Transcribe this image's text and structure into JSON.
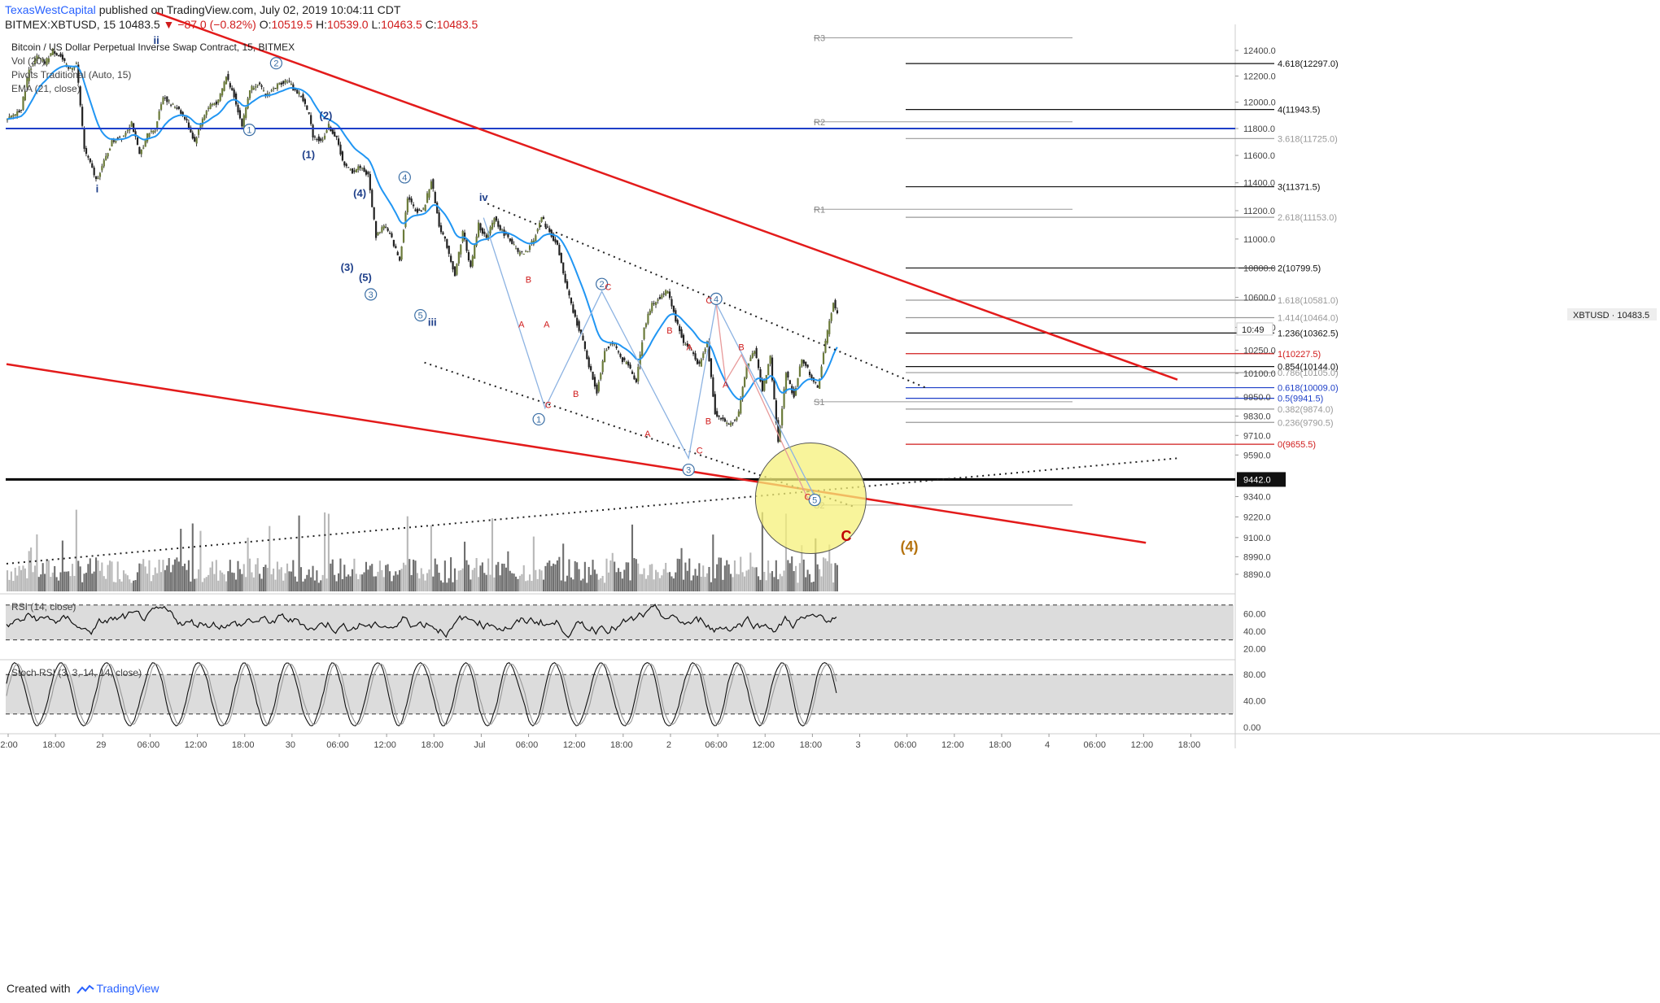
{
  "header": {
    "author": "TexasWestCapital",
    "published_text": "published on TradingView.com, July 02, 2019 10:04:11 CDT",
    "symbol_line": "BITMEX:XBTUSD, 15",
    "last": "10483.5",
    "change": "▼ −87.0 (−0.82%)",
    "o_label": "O:",
    "o_val": "10519.5",
    "h_label": "H:",
    "h_val": "10539.0",
    "l_label": "L:",
    "l_val": "10463.5",
    "c_label": "C:",
    "c_val": "10483.5"
  },
  "legend": {
    "title": "Bitcoin / US Dollar Perpetual Inverse Swap Contract, 15, BITMEX",
    "items": [
      "Vol (20)",
      "Pivots Traditional (Auto, 15)",
      "EMA (21, close)"
    ]
  },
  "footer": {
    "created_with": "Created with",
    "brand": "TradingView"
  },
  "colors": {
    "up": "#6b7b3a",
    "down": "#222222",
    "ema": "#2196f3",
    "red_line": "#e31b1b",
    "blue_line": "#1e3fc8",
    "circle_fill": "#f6f07a",
    "rsi_band": "#dcdcdc"
  },
  "chart_data": [
    {
      "type": "line",
      "title": "Bitcoin / US Dollar Perpetual Inverse Swap Contract, 15, BITMEX",
      "y_axis": {
        "ticks": [
          12400.0,
          12200.0,
          12000.0,
          11800.0,
          11600.0,
          11400.0,
          11200.0,
          11000.0,
          10800.0,
          10600.0,
          10400.0,
          10250.0,
          10100.0,
          9950.0,
          9830.0,
          9710.0,
          9590.0,
          9442.0,
          9340.0,
          9220.0,
          9100.0,
          8990.0,
          8890.0
        ],
        "tick_labels": [
          "12400.0",
          "12200.0",
          "12000.0",
          "11800.0",
          "11600.0",
          "11400.0",
          "11200.0",
          "11000.0",
          "10800.0",
          "10600.0",
          "10400.0",
          "10250.0",
          "10100.0",
          "9950.0",
          "9830.0",
          "9710.0",
          "9590.0",
          "9442.0",
          "9340.0",
          "9220.0",
          "9100.0",
          "8990.0",
          "8890.0"
        ],
        "scale": "log"
      },
      "x_axis": {
        "tick_labels": [
          "12:00",
          "18:00",
          "29",
          "06:00",
          "12:00",
          "18:00",
          "30",
          "06:00",
          "12:00",
          "18:00",
          "Jul",
          "06:00",
          "12:00",
          "18:00",
          "2",
          "06:00",
          "12:00",
          "18:00",
          "3",
          "06:00",
          "12:00",
          "18:00",
          "4",
          "06:00",
          "12:00",
          "18:00"
        ],
        "tick_hours_from_start": [
          0,
          6,
          12,
          18,
          24,
          30,
          36,
          42,
          48,
          54,
          60,
          66,
          72,
          78,
          84,
          90,
          96,
          102,
          108,
          114,
          120,
          126,
          132,
          138,
          144,
          150
        ]
      },
      "price_path": [
        {
          "h": 0,
          "p": 11850
        },
        {
          "h": 1,
          "p": 11900
        },
        {
          "h": 2,
          "p": 11950
        },
        {
          "h": 3,
          "p": 12250
        },
        {
          "h": 4,
          "p": 12350
        },
        {
          "h": 5,
          "p": 12300
        },
        {
          "h": 6,
          "p": 12400
        },
        {
          "h": 7,
          "p": 12350
        },
        {
          "h": 8,
          "p": 12250
        },
        {
          "h": 9,
          "p": 12300
        },
        {
          "h": 10,
          "p": 11650
        },
        {
          "h": 11,
          "p": 11500
        },
        {
          "h": 11.5,
          "p": 11420
        },
        {
          "h": 12.5,
          "p": 11550
        },
        {
          "h": 13.5,
          "p": 11700
        },
        {
          "h": 15,
          "p": 11750
        },
        {
          "h": 16,
          "p": 11850
        },
        {
          "h": 17,
          "p": 11600
        },
        {
          "h": 18,
          "p": 11750
        },
        {
          "h": 19,
          "p": 11800
        },
        {
          "h": 20,
          "p": 12050
        },
        {
          "h": 21,
          "p": 11980
        },
        {
          "h": 22,
          "p": 11950
        },
        {
          "h": 23,
          "p": 11850
        },
        {
          "h": 24,
          "p": 11700
        },
        {
          "h": 25,
          "p": 11880
        },
        {
          "h": 26,
          "p": 11980
        },
        {
          "h": 27,
          "p": 12000
        },
        {
          "h": 28,
          "p": 12200
        },
        {
          "h": 29,
          "p": 12050
        },
        {
          "h": 30,
          "p": 11820
        },
        {
          "h": 31,
          "p": 12100
        },
        {
          "h": 32,
          "p": 12150
        },
        {
          "h": 33,
          "p": 12050
        },
        {
          "h": 34,
          "p": 12100
        },
        {
          "h": 35,
          "p": 12150
        },
        {
          "h": 35.8,
          "p": 12170
        },
        {
          "h": 36.5,
          "p": 12100
        },
        {
          "h": 37.5,
          "p": 12050
        },
        {
          "h": 38.5,
          "p": 11900
        },
        {
          "h": 39,
          "p": 11750
        },
        {
          "h": 40,
          "p": 11700
        },
        {
          "h": 41,
          "p": 11820
        },
        {
          "h": 42,
          "p": 11720
        },
        {
          "h": 43,
          "p": 11520
        },
        {
          "h": 44,
          "p": 11480
        },
        {
          "h": 45,
          "p": 11520
        },
        {
          "h": 46,
          "p": 11450
        },
        {
          "h": 47,
          "p": 11020
        },
        {
          "h": 48,
          "p": 11100
        },
        {
          "h": 49,
          "p": 11000
        },
        {
          "h": 50,
          "p": 10850
        },
        {
          "h": 51,
          "p": 11300
        },
        {
          "h": 52,
          "p": 11200
        },
        {
          "h": 53,
          "p": 11200
        },
        {
          "h": 54,
          "p": 11420
        },
        {
          "h": 55,
          "p": 11100
        },
        {
          "h": 56,
          "p": 10950
        },
        {
          "h": 57,
          "p": 10750
        },
        {
          "h": 58,
          "p": 11050
        },
        {
          "h": 59,
          "p": 10800
        },
        {
          "h": 60,
          "p": 11100
        },
        {
          "h": 61,
          "p": 11000
        },
        {
          "h": 62,
          "p": 11150
        },
        {
          "h": 63,
          "p": 11050
        },
        {
          "h": 64,
          "p": 11000
        },
        {
          "h": 65,
          "p": 10900
        },
        {
          "h": 66,
          "p": 10900
        },
        {
          "h": 67,
          "p": 11000
        },
        {
          "h": 68,
          "p": 11150
        },
        {
          "h": 69,
          "p": 11050
        },
        {
          "h": 70,
          "p": 10950
        },
        {
          "h": 71,
          "p": 10700
        },
        {
          "h": 72,
          "p": 10500
        },
        {
          "h": 73,
          "p": 10350
        },
        {
          "h": 74,
          "p": 10150
        },
        {
          "h": 75,
          "p": 9980
        },
        {
          "h": 76,
          "p": 10250
        },
        {
          "h": 77,
          "p": 10300
        },
        {
          "h": 78,
          "p": 10200
        },
        {
          "h": 79,
          "p": 10150
        },
        {
          "h": 80,
          "p": 10050
        },
        {
          "h": 81,
          "p": 10400
        },
        {
          "h": 82,
          "p": 10550
        },
        {
          "h": 83,
          "p": 10600
        },
        {
          "h": 84,
          "p": 10650
        },
        {
          "h": 85,
          "p": 10450
        },
        {
          "h": 86,
          "p": 10300
        },
        {
          "h": 87,
          "p": 10250
        },
        {
          "h": 88,
          "p": 10150
        },
        {
          "h": 89,
          "p": 10300
        },
        {
          "h": 90,
          "p": 9850
        },
        {
          "h": 91,
          "p": 9800
        },
        {
          "h": 92,
          "p": 9780
        },
        {
          "h": 93,
          "p": 9850
        },
        {
          "h": 94,
          "p": 10150
        },
        {
          "h": 95,
          "p": 10250
        },
        {
          "h": 96,
          "p": 10000
        },
        {
          "h": 97,
          "p": 10200
        },
        {
          "h": 98,
          "p": 9660
        },
        {
          "h": 99,
          "p": 10100
        },
        {
          "h": 100,
          "p": 9950
        },
        {
          "h": 101,
          "p": 10200
        },
        {
          "h": 102,
          "p": 10100
        },
        {
          "h": 103,
          "p": 10000
        },
        {
          "h": 104,
          "p": 10300
        },
        {
          "h": 105,
          "p": 10570
        },
        {
          "h": 105.5,
          "p": 10483.5
        }
      ],
      "ema_label": "EMA (21, close)",
      "fib_levels": [
        {
          "label": "4.618(12297.0)",
          "price": 12297.0,
          "color": "#111111"
        },
        {
          "label": "4(11943.5)",
          "price": 11943.5,
          "color": "#111111"
        },
        {
          "label": "3.618(11725.0)",
          "price": 11725.0,
          "color": "#999999"
        },
        {
          "label": "3(11371.5)",
          "price": 11371.5,
          "color": "#111111"
        },
        {
          "label": "2.618(11153.0)",
          "price": 11153.0,
          "color": "#999999"
        },
        {
          "label": "2(10799.5)",
          "price": 10799.5,
          "color": "#111111"
        },
        {
          "label": "1.618(10581.0)",
          "price": 10581.0,
          "color": "#999999"
        },
        {
          "label": "1.414(10464.0)",
          "price": 10464.0,
          "color": "#999999"
        },
        {
          "label": "1.236(10362.5)",
          "price": 10362.5,
          "color": "#111111"
        },
        {
          "label": "1(10227.5)",
          "price": 10227.5,
          "color": "#d01b1b"
        },
        {
          "label": "0.854(10144.0)",
          "price": 10144.0,
          "color": "#111111"
        },
        {
          "label": "0.786(10105.0)",
          "price": 10105.0,
          "color": "#999999"
        },
        {
          "label": "0.618(10009.0)",
          "price": 10009.0,
          "color": "#1e3fc8"
        },
        {
          "label": "0.5(9941.5)",
          "price": 9941.5,
          "color": "#1e3fc8"
        },
        {
          "label": "0.382(9874.0)",
          "price": 9874.0,
          "color": "#999999"
        },
        {
          "label": "0.236(9790.5)",
          "price": 9790.5,
          "color": "#999999"
        },
        {
          "label": "0(9655.5)",
          "price": 9655.5,
          "color": "#d01b1b"
        }
      ],
      "pivots": [
        {
          "label": "R3",
          "price": 12500
        },
        {
          "label": "R2",
          "price": 11850
        },
        {
          "label": "R1",
          "price": 11210
        },
        {
          "label": "S1",
          "price": 9920
        },
        {
          "label": "S2",
          "price": 9290
        }
      ],
      "horizontal_lines": [
        {
          "price": 11800,
          "color": "#1e3fc8"
        },
        {
          "price": 9442,
          "color": "#000000"
        }
      ],
      "price_labels": {
        "symbol": "XBTUSD",
        "last": "10483.5",
        "countdown": "10:49",
        "level": "9442.0"
      },
      "wave_labels": [
        {
          "text": "ii",
          "h": 19,
          "p": 12450,
          "color": "#1e3f8a"
        },
        {
          "text": "i",
          "h": 11.5,
          "p": 11330,
          "color": "#1e3f8a"
        },
        {
          "text": "iii",
          "h": 54,
          "p": 10410,
          "color": "#1e3f8a"
        },
        {
          "text": "iv",
          "h": 60.5,
          "p": 11270,
          "color": "#1e3f8a"
        },
        {
          "text": "(1)",
          "h": 38.3,
          "p": 11580,
          "color": "#1e3f8a"
        },
        {
          "text": "(2)",
          "h": 40.5,
          "p": 11870,
          "color": "#1e3f8a"
        },
        {
          "text": "(3)",
          "h": 43.2,
          "p": 10780,
          "color": "#1e3f8a"
        },
        {
          "text": "(4)",
          "h": 44.8,
          "p": 11300,
          "color": "#1e3f8a"
        },
        {
          "text": "(5)",
          "h": 45.5,
          "p": 10710,
          "color": "#1e3f8a"
        },
        {
          "text": "C",
          "h": 106.5,
          "p": 9080,
          "color": "#c00000"
        },
        {
          "text": "(4)",
          "h": 114.5,
          "p": 9020,
          "color": "#b5730f"
        }
      ],
      "circled_labels": [
        {
          "text": "1",
          "h": 30.8,
          "p": 11790
        },
        {
          "text": "2",
          "h": 34.2,
          "p": 12300
        },
        {
          "text": "3",
          "h": 46.2,
          "p": 10620
        },
        {
          "text": "4",
          "h": 50.5,
          "p": 11440
        },
        {
          "text": "5",
          "h": 52.5,
          "p": 10480
        },
        {
          "text": "1",
          "h": 67.5,
          "p": 9810
        },
        {
          "text": "2",
          "h": 75.5,
          "p": 10690
        },
        {
          "text": "3",
          "h": 86.5,
          "p": 9500
        },
        {
          "text": "4",
          "h": 90,
          "p": 10590
        },
        {
          "text": "5",
          "h": 102.5,
          "p": 9320
        }
      ],
      "abc_labels": [
        {
          "text": "B",
          "h": 66.2,
          "p": 10700
        },
        {
          "text": "A",
          "h": 65.3,
          "p": 10400
        },
        {
          "text": "A",
          "h": 68.5,
          "p": 10400
        },
        {
          "text": "C",
          "h": 68.7,
          "p": 9880
        },
        {
          "text": "B",
          "h": 72.2,
          "p": 9950
        },
        {
          "text": "C",
          "h": 76.3,
          "p": 10650
        },
        {
          "text": "B",
          "h": 84.1,
          "p": 10360
        },
        {
          "text": "A",
          "h": 86.6,
          "p": 10250
        },
        {
          "text": "A",
          "h": 81.3,
          "p": 9700
        },
        {
          "text": "C",
          "h": 87.9,
          "p": 9600
        },
        {
          "text": "B",
          "h": 89,
          "p": 9780
        },
        {
          "text": "C",
          "h": 89.1,
          "p": 10560
        },
        {
          "text": "B",
          "h": 93.2,
          "p": 10250
        },
        {
          "text": "A",
          "h": 91.2,
          "p": 10010
        },
        {
          "text": "C",
          "h": 101.6,
          "p": 9320
        }
      ],
      "trend_lines": [
        {
          "from": {
            "h": 19,
            "p": 12700
          },
          "to": {
            "h": 148.5,
            "p": 10060
          },
          "color": "#e31b1b",
          "style": "solid"
        },
        {
          "from": {
            "h": 0,
            "p": 10160
          },
          "to": {
            "h": 144.5,
            "p": 9070
          },
          "color": "#e31b1b",
          "style": "solid"
        },
        {
          "from": {
            "h": 61,
            "p": 11250
          },
          "to": {
            "h": 116.5,
            "p": 10010
          },
          "color": "#222222",
          "style": "dotted"
        },
        {
          "from": {
            "h": 53,
            "p": 10170
          },
          "to": {
            "h": 107.5,
            "p": 9280
          },
          "color": "#222222",
          "style": "dotted"
        },
        {
          "from": {
            "h": 0,
            "p": 8950
          },
          "to": {
            "h": 148.5,
            "p": 9570
          },
          "color": "#222222",
          "style": "dotted"
        }
      ],
      "target_zone": {
        "h": 102,
        "p": 9330
      }
    },
    {
      "type": "bar",
      "title": "Vol (20)",
      "note": "volume histogram"
    },
    {
      "type": "line",
      "title": "RSI (14, close)",
      "y_ticks": [
        60.0,
        40.0,
        20.0
      ],
      "y_tick_labels": [
        "60.00",
        "40.00",
        "20.00"
      ],
      "bands": [
        70,
        30
      ]
    },
    {
      "type": "line",
      "title": "Stoch RSI (3, 3, 14, 14, close)",
      "y_ticks": [
        80.0,
        40.0,
        0.0
      ],
      "y_tick_labels": [
        "80.00",
        "40.00",
        "0.00"
      ],
      "bands": [
        80,
        20
      ]
    }
  ]
}
